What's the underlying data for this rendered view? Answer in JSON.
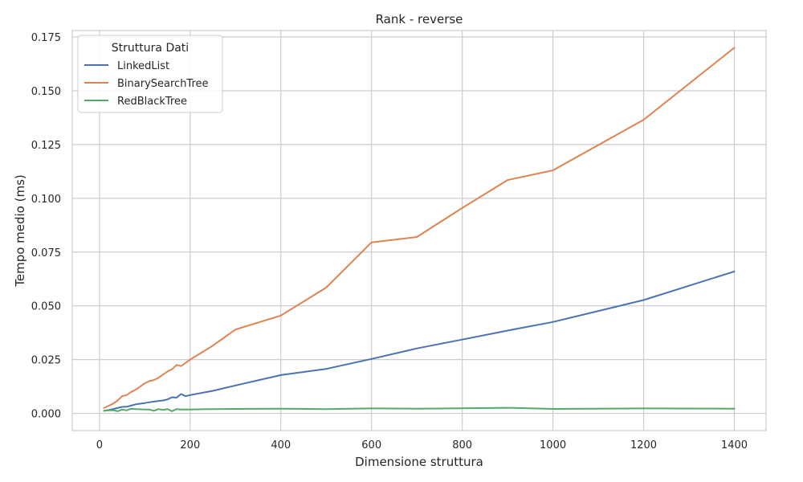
{
  "chart_data": {
    "type": "line",
    "title": "Rank - reverse",
    "xlabel": "Dimensione struttura",
    "ylabel": "Tempo medio (ms)",
    "xlim": [
      -60,
      1470
    ],
    "ylim": [
      -0.008,
      0.178
    ],
    "xticks": [
      0,
      200,
      400,
      600,
      800,
      1000,
      1200,
      1400
    ],
    "xtick_labels": [
      "0",
      "200",
      "400",
      "600",
      "800",
      "1000",
      "1200",
      "1400"
    ],
    "yticks": [
      0,
      0.025,
      0.05,
      0.075,
      0.1,
      0.125,
      0.15,
      0.175
    ],
    "ytick_labels": [
      "0.000",
      "0.025",
      "0.050",
      "0.075",
      "0.100",
      "0.125",
      "0.150",
      "0.175"
    ],
    "grid": true,
    "legend": {
      "title": "Struttura Dati",
      "placement": "top-left"
    },
    "series": [
      {
        "name": "LinkedList",
        "color": "#4c72b0",
        "x": [
          10,
          20,
          30,
          40,
          50,
          60,
          70,
          80,
          90,
          100,
          110,
          120,
          130,
          140,
          150,
          160,
          170,
          180,
          190,
          200,
          250,
          300,
          400,
          500,
          600,
          700,
          800,
          900,
          1000,
          1200,
          1400
        ],
        "y": [
          0.0012,
          0.0016,
          0.002,
          0.0025,
          0.003,
          0.0031,
          0.0036,
          0.0042,
          0.0045,
          0.0048,
          0.0052,
          0.0055,
          0.0058,
          0.006,
          0.0065,
          0.0075,
          0.0073,
          0.009,
          0.008,
          0.0085,
          0.0105,
          0.013,
          0.0178,
          0.0207,
          0.0253,
          0.0302,
          0.0343,
          0.0385,
          0.0425,
          0.0527,
          0.066
        ]
      },
      {
        "name": "BinarySearchTree",
        "color": "#dd8452",
        "x": [
          10,
          20,
          30,
          40,
          50,
          60,
          70,
          80,
          90,
          100,
          110,
          120,
          130,
          140,
          150,
          160,
          170,
          180,
          190,
          200,
          250,
          300,
          400,
          500,
          600,
          700,
          800,
          900,
          1000,
          1200,
          1400
        ],
        "y": [
          0.0025,
          0.0035,
          0.0045,
          0.006,
          0.008,
          0.0085,
          0.01,
          0.011,
          0.0125,
          0.014,
          0.015,
          0.0155,
          0.0165,
          0.018,
          0.0195,
          0.0205,
          0.0225,
          0.022,
          0.0235,
          0.025,
          0.0315,
          0.039,
          0.0455,
          0.0585,
          0.0795,
          0.082,
          0.0955,
          0.1085,
          0.113,
          0.1365,
          0.17
        ]
      },
      {
        "name": "RedBlackTree",
        "color": "#55a868",
        "x": [
          10,
          20,
          30,
          40,
          50,
          60,
          70,
          80,
          90,
          100,
          110,
          120,
          130,
          140,
          150,
          160,
          170,
          180,
          190,
          200,
          250,
          300,
          400,
          500,
          600,
          700,
          800,
          900,
          1000,
          1200,
          1400
        ],
        "y": [
          0.0012,
          0.0014,
          0.0015,
          0.001,
          0.0018,
          0.0014,
          0.0022,
          0.002,
          0.0019,
          0.0018,
          0.0018,
          0.0012,
          0.002,
          0.0016,
          0.002,
          0.001,
          0.002,
          0.0018,
          0.0018,
          0.0018,
          0.002,
          0.0021,
          0.0022,
          0.002,
          0.0023,
          0.0022,
          0.0024,
          0.0026,
          0.0021,
          0.0023,
          0.0022
        ]
      }
    ]
  }
}
